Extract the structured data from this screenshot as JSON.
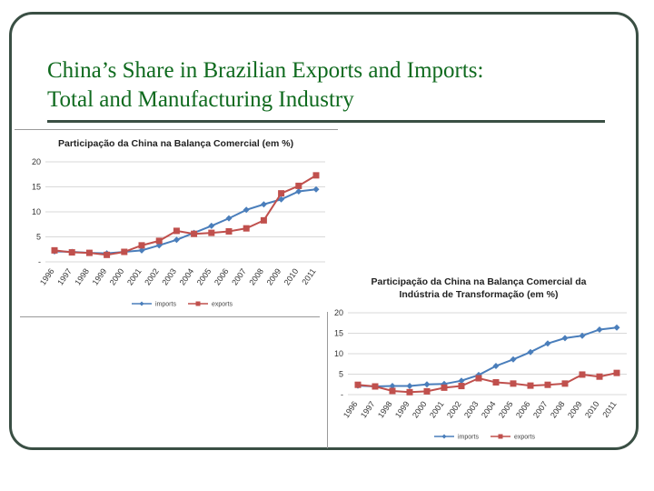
{
  "slide": {
    "title_line1": "China’s Share in Brazilian Exports and Imports:",
    "title_line2": "Total and Manufacturing Industry"
  },
  "colors": {
    "title": "#0f6a1e",
    "frame": "#3a4f44",
    "imports": "#4a7ebb",
    "exports": "#c0504d"
  },
  "chart_data": [
    {
      "type": "line",
      "title": "Participação da China na Balança Comercial  (em %)",
      "title_line2": "",
      "categories": [
        "1996",
        "1997",
        "1998",
        "1999",
        "2000",
        "2001",
        "2002",
        "2003",
        "2004",
        "2005",
        "2006",
        "2007",
        "2008",
        "2009",
        "2010",
        "2011"
      ],
      "yticks": [
        "-",
        "5",
        "10",
        "15",
        "20"
      ],
      "ylim": [
        0,
        20
      ],
      "legend": "bottom",
      "series": [
        {
          "name": "imports",
          "color": "#4a7ebb",
          "marker": "diamond",
          "values": [
            2.1,
            2.0,
            1.8,
            1.7,
            2.0,
            2.3,
            3.3,
            4.4,
            5.8,
            7.2,
            8.7,
            10.4,
            11.5,
            12.5,
            14.1,
            14.5
          ]
        },
        {
          "name": "exports",
          "color": "#c0504d",
          "marker": "square",
          "values": [
            2.3,
            1.9,
            1.8,
            1.4,
            2.0,
            3.3,
            4.2,
            6.2,
            5.6,
            5.8,
            6.1,
            6.7,
            8.3,
            13.7,
            15.2,
            17.3
          ]
        }
      ]
    },
    {
      "type": "line",
      "title": "Participação da China na Balança Comercial da",
      "title_line2": "Indústria de Transformação (em %)",
      "categories": [
        "1996",
        "1997",
        "1998",
        "1999",
        "2000",
        "2001",
        "2002",
        "2003",
        "2004",
        "2005",
        "2006",
        "2007",
        "2008",
        "2009",
        "2010",
        "2011"
      ],
      "yticks": [
        "-",
        "5",
        "10",
        "15",
        "20"
      ],
      "ylim": [
        0,
        20
      ],
      "legend": "bottom",
      "series": [
        {
          "name": "imports",
          "color": "#4a7ebb",
          "marker": "diamond",
          "values": [
            2.2,
            2.0,
            2.1,
            2.1,
            2.5,
            2.6,
            3.4,
            4.8,
            7.0,
            8.6,
            10.4,
            12.5,
            13.8,
            14.4,
            15.9,
            16.4
          ]
        },
        {
          "name": "exports",
          "color": "#c0504d",
          "marker": "square",
          "values": [
            2.4,
            2.0,
            0.9,
            0.6,
            0.8,
            1.7,
            2.1,
            4.0,
            3.0,
            2.7,
            2.2,
            2.4,
            2.7,
            4.9,
            4.4,
            5.3
          ]
        }
      ]
    }
  ]
}
